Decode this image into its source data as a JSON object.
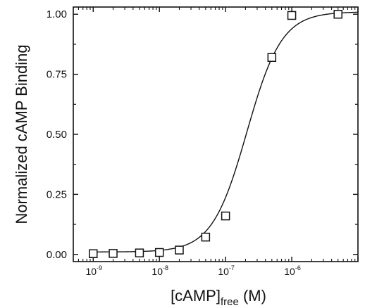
{
  "chart_data": {
    "type": "scatter",
    "title": "",
    "xlabel": "[cAMP]",
    "xlabel_subscript": "free",
    "xlabel_unit": " (M)",
    "ylabel": "Normalized cAMP Binding",
    "x_scale": "log",
    "xlim": [
      5e-10,
      1e-05
    ],
    "ylim": [
      -0.03,
      1.03
    ],
    "grid": false,
    "legend": "none",
    "x_ticks": [
      {
        "base": "10",
        "exp": "-9",
        "value": 1e-09
      },
      {
        "base": "10",
        "exp": "-8",
        "value": 1e-08
      },
      {
        "base": "10",
        "exp": "-7",
        "value": 1e-07
      },
      {
        "base": "10",
        "exp": "-6",
        "value": 1e-06
      }
    ],
    "y_ticks": [
      {
        "label": "0.00",
        "value": 0.0
      },
      {
        "label": "0.25",
        "value": 0.25
      },
      {
        "label": "0.50",
        "value": 0.5
      },
      {
        "label": "0.75",
        "value": 0.75
      },
      {
        "label": "1.00",
        "value": 1.0
      }
    ],
    "points": [
      {
        "x": 1e-09,
        "y": 0.003
      },
      {
        "x": 2e-09,
        "y": 0.004
      },
      {
        "x": 5e-09,
        "y": 0.006
      },
      {
        "x": 1e-08,
        "y": 0.008
      },
      {
        "x": 2e-08,
        "y": 0.018
      },
      {
        "x": 5e-08,
        "y": 0.072
      },
      {
        "x": 1e-07,
        "y": 0.16
      },
      {
        "x": 5e-07,
        "y": 0.82
      },
      {
        "x": 1e-06,
        "y": 0.995
      },
      {
        "x": 5e-06,
        "y": 1.0
      }
    ],
    "fit": {
      "model": "sigmoidal",
      "bottom": 0.01,
      "top": 1.01,
      "ec50": 2.1e-07,
      "hill": 1.65
    },
    "colors": {
      "marker": "#111111",
      "line": "#111111",
      "axis": "#111111"
    }
  }
}
